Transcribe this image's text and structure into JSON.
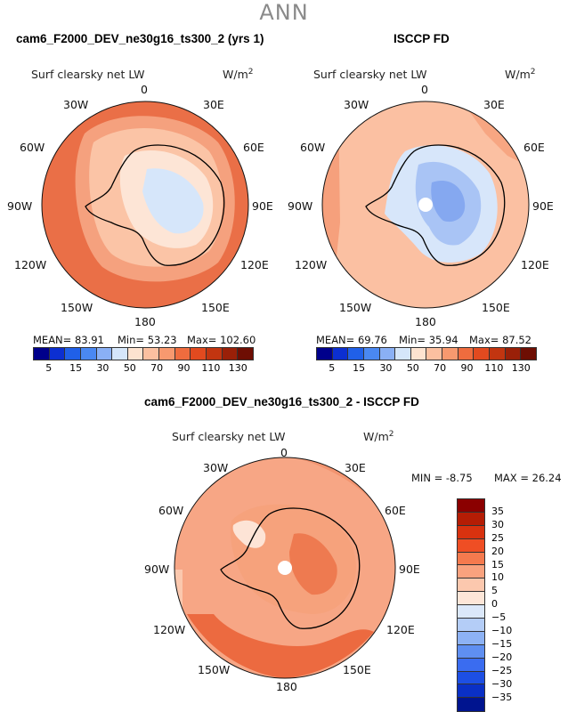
{
  "figure": {
    "suptitle": "ANN"
  },
  "panels": [
    {
      "title": "cam6_F2000_DEV_ne30g16_ts300_2 (yrs 1)",
      "variable": "Surf clearsky net LW",
      "units": "W/m",
      "units_exp": "2",
      "lon_labels": [
        "0",
        "30E",
        "60E",
        "90E",
        "120E",
        "150E",
        "180",
        "150W",
        "120W",
        "90W",
        "60W",
        "30W"
      ],
      "stats": {
        "mean_label": "MEAN=",
        "mean": "83.91",
        "min_label": "Min=",
        "min": "53.23",
        "max_label": "Max=",
        "max": "102.60"
      },
      "colorbar": {
        "colors": [
          "#00008b",
          "#0c2fd1",
          "#2060e8",
          "#4a88f2",
          "#8ab0f5",
          "#d5e6fa",
          "#fde3d0",
          "#fbc0a0",
          "#f7996f",
          "#ef6c3e",
          "#e24a1f",
          "#c23510",
          "#9a2008",
          "#6e0e03"
        ],
        "ticks": [
          "5",
          "15",
          "30",
          "50",
          "70",
          "90",
          "110",
          "130"
        ]
      }
    },
    {
      "title": "ISCCP FD",
      "variable": "Surf clearsky net LW",
      "units": "W/m",
      "units_exp": "2",
      "lon_labels": [
        "0",
        "30E",
        "60E",
        "90E",
        "120E",
        "150E",
        "180",
        "150W",
        "120W",
        "90W",
        "60W",
        "30W"
      ],
      "stats": {
        "mean_label": "MEAN=",
        "mean": "69.76",
        "min_label": "Min=",
        "min": "35.94",
        "max_label": "Max=",
        "max": "87.52"
      },
      "colorbar": {
        "colors": [
          "#00008b",
          "#0c2fd1",
          "#2060e8",
          "#4a88f2",
          "#8ab0f5",
          "#d5e6fa",
          "#fde3d0",
          "#fbc0a0",
          "#f7996f",
          "#ef6c3e",
          "#e24a1f",
          "#c23510",
          "#9a2008",
          "#6e0e03"
        ],
        "ticks": [
          "5",
          "15",
          "30",
          "50",
          "70",
          "90",
          "110",
          "130"
        ]
      }
    },
    {
      "title": "cam6_F2000_DEV_ne30g16_ts300_2 - ISCCP FD",
      "variable": "Surf clearsky net LW",
      "units": "W/m",
      "units_exp": "2",
      "lon_labels": [
        "0",
        "30E",
        "60E",
        "90E",
        "120E",
        "150E",
        "180",
        "150W",
        "120W",
        "90W",
        "60W",
        "30W"
      ],
      "stats": {
        "min_label": "MIN =",
        "min": "-8.75",
        "max_label": "MAX =",
        "max": "26.24"
      },
      "colorbar": {
        "colors": [
          "#8b0000",
          "#b51d05",
          "#d8320f",
          "#ef4e24",
          "#f57a4e",
          "#f9a27e",
          "#fcc8ae",
          "#fde6d8",
          "#dbe8fa",
          "#b4cdf7",
          "#8db2f4",
          "#5f8ff1",
          "#3a6cf0",
          "#1d4fe4",
          "#0a30c6",
          "#00148f"
        ],
        "ticks": [
          "35",
          "30",
          "25",
          "20",
          "15",
          "10",
          "5",
          "0",
          "−5",
          "−10",
          "−15",
          "−20",
          "−25",
          "−30",
          "−35"
        ]
      }
    }
  ]
}
